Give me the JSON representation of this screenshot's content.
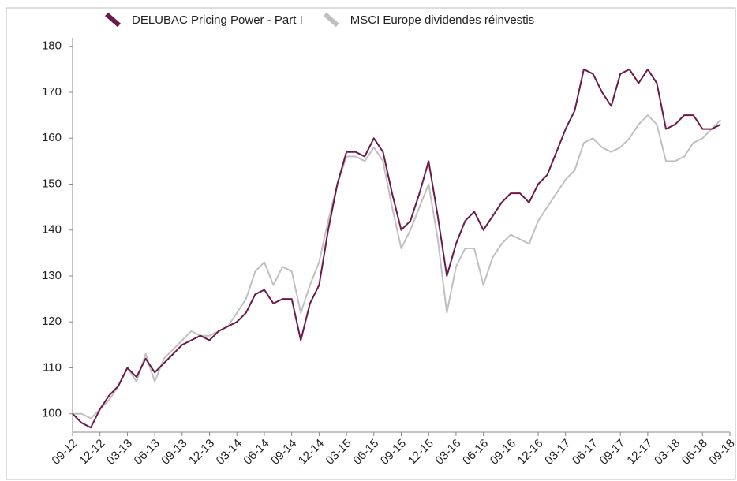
{
  "chart_data": {
    "type": "line",
    "categories": [
      "09-12",
      null,
      null,
      "12-12",
      null,
      null,
      "03-13",
      null,
      null,
      "06-13",
      null,
      null,
      "09-13",
      null,
      null,
      "12-13",
      null,
      null,
      "03-14",
      null,
      null,
      "06-14",
      null,
      null,
      "09-14",
      null,
      null,
      "12-14",
      null,
      null,
      "03-15",
      null,
      null,
      "06-15",
      null,
      null,
      "09-15",
      null,
      null,
      "12-15",
      null,
      null,
      "03-16",
      null,
      null,
      "06-16",
      null,
      null,
      "09-16",
      null,
      null,
      "12-16",
      null,
      null,
      "03-17",
      null,
      null,
      "06-17",
      null,
      null,
      "09-17",
      null,
      null,
      "12-17",
      null,
      null,
      "03-18",
      null,
      null,
      "06-18",
      null,
      null,
      "09-18"
    ],
    "series": [
      {
        "name": "DELUBAC Pricing Power - Part I",
        "color": "#6b1a4a",
        "values": [
          100,
          98,
          97,
          101,
          104,
          106,
          110,
          108,
          112,
          109,
          111,
          113,
          115,
          116,
          117,
          116,
          118,
          119,
          120,
          122,
          126,
          127,
          124,
          125,
          125,
          116,
          124,
          128,
          140,
          150,
          157,
          157,
          156,
          160,
          157,
          148,
          140,
          142,
          148,
          155,
          143,
          130,
          137,
          142,
          144,
          140,
          143,
          146,
          148,
          148,
          146,
          150,
          152,
          157,
          162,
          166,
          175,
          174,
          170,
          167,
          174,
          175,
          172,
          175,
          172,
          162,
          163,
          165,
          165,
          162,
          162,
          163,
          null
        ]
      },
      {
        "name": "MSCI Europe dividendes réinvestis",
        "color": "#c0c0c0",
        "values": [
          100,
          100,
          99,
          101,
          103,
          106,
          110,
          107,
          113,
          107,
          112,
          114,
          116,
          118,
          117,
          117,
          118,
          119,
          122,
          125,
          131,
          133,
          128,
          132,
          131,
          122,
          128,
          133,
          142,
          150,
          156,
          156,
          155,
          158,
          155,
          145,
          136,
          140,
          145,
          150,
          138,
          122,
          132,
          136,
          136,
          128,
          134,
          137,
          139,
          138,
          137,
          142,
          145,
          148,
          151,
          153,
          159,
          160,
          158,
          157,
          158,
          160,
          163,
          165,
          163,
          155,
          155,
          156,
          159,
          160,
          162,
          164,
          null
        ]
      }
    ],
    "ylim": [
      96,
      187
    ],
    "yticks": [
      100,
      110,
      120,
      130,
      140,
      150,
      160,
      170,
      180
    ],
    "legend": "top"
  }
}
